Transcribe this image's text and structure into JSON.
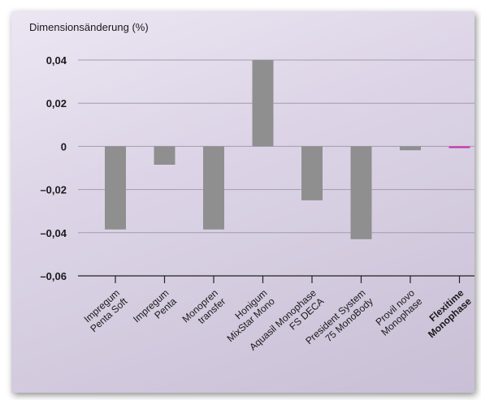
{
  "chart_data": {
    "type": "bar",
    "ylabel": "Dimensionsänderung (%)",
    "ylim": [
      -0.06,
      0.04
    ],
    "yticks": [
      0.04,
      0.02,
      0,
      -0.02,
      -0.04,
      -0.06
    ],
    "ytick_labels": [
      "0,04",
      "0,02",
      "0",
      "–0,02",
      "–0,04",
      "–0,06"
    ],
    "grid": true,
    "categories": [
      {
        "lines": [
          "Impregum",
          "Penta Soft"
        ],
        "bold": false
      },
      {
        "lines": [
          "Impregum",
          "Penta"
        ],
        "bold": false
      },
      {
        "lines": [
          "Monopren",
          "transfer"
        ],
        "bold": false
      },
      {
        "lines": [
          "Honigum",
          "MixStar Mono"
        ],
        "bold": false
      },
      {
        "lines": [
          "Aquasil Monophase",
          "FS DECA"
        ],
        "bold": false
      },
      {
        "lines": [
          "President System",
          "75 MonoBody"
        ],
        "bold": false
      },
      {
        "lines": [
          "Provil novo",
          "Monophase"
        ],
        "bold": false
      },
      {
        "lines": [
          "Flexitime",
          "Monophase"
        ],
        "bold": true
      }
    ],
    "values": [
      -0.0385,
      -0.0085,
      -0.0385,
      0.04,
      -0.025,
      -0.043,
      -0.0018,
      -0.0008
    ],
    "colors": {
      "bar": "#8f8f8f",
      "highlight": "#cc33aa",
      "grid": "#a39cae",
      "axis": "#222222",
      "text": "#1a1a1a"
    }
  }
}
